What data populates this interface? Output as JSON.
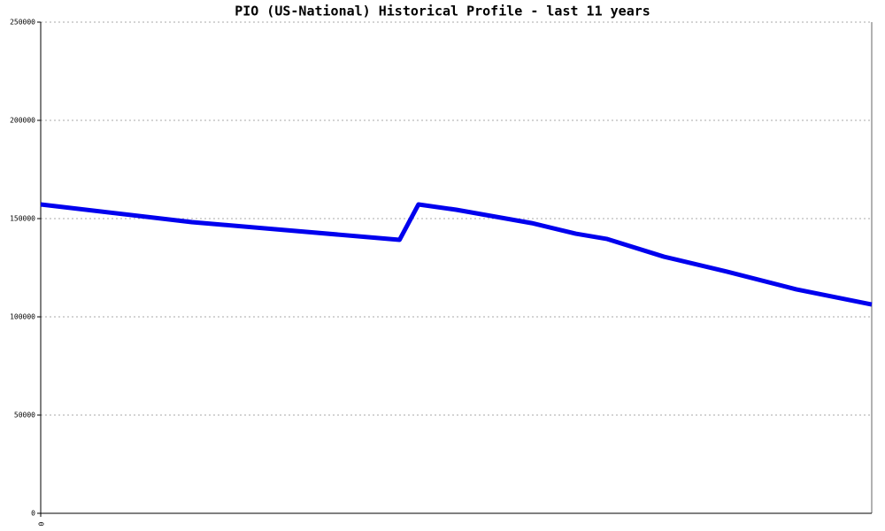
{
  "chart_data": {
    "type": "line",
    "title": "PIO (US-National) Historical Profile - last 11 years",
    "x": [
      0,
      24,
      57,
      60,
      66,
      78,
      85,
      90,
      99,
      109,
      120,
      132
    ],
    "series": [
      {
        "color": "#0000ee",
        "values": [
          157200,
          148200,
          139200,
          157200,
          154500,
          147700,
          142300,
          139600,
          130600,
          123000,
          114000,
          106300
        ]
      }
    ],
    "xlim": [
      0,
      132
    ],
    "xticks": [
      0
    ],
    "ylim": [
      0,
      250000
    ],
    "yticks": [
      0,
      50000,
      100000,
      150000,
      200000,
      250000
    ],
    "grid": true
  }
}
